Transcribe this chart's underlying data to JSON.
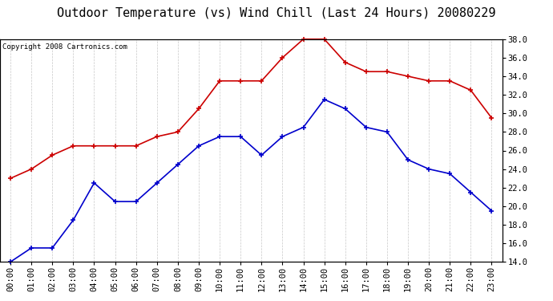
{
  "title": "Outdoor Temperature (vs) Wind Chill (Last 24 Hours) 20080229",
  "copyright": "Copyright 2008 Cartronics.com",
  "hours": [
    "00:00",
    "01:00",
    "02:00",
    "03:00",
    "04:00",
    "05:00",
    "06:00",
    "07:00",
    "08:00",
    "09:00",
    "10:00",
    "11:00",
    "12:00",
    "13:00",
    "14:00",
    "15:00",
    "16:00",
    "17:00",
    "18:00",
    "19:00",
    "20:00",
    "21:00",
    "22:00",
    "23:00"
  ],
  "temp": [
    23.0,
    24.0,
    25.5,
    26.5,
    26.5,
    26.5,
    26.5,
    27.5,
    28.0,
    30.5,
    33.5,
    33.5,
    33.5,
    36.0,
    38.0,
    38.0,
    35.5,
    34.5,
    34.5,
    34.0,
    33.5,
    33.5,
    32.5,
    29.5
  ],
  "windchill": [
    14.0,
    15.5,
    15.5,
    18.5,
    22.5,
    20.5,
    20.5,
    22.5,
    24.5,
    26.5,
    27.5,
    27.5,
    25.5,
    27.5,
    28.5,
    31.5,
    30.5,
    28.5,
    28.0,
    25.0,
    24.0,
    23.5,
    21.5,
    19.5
  ],
  "temp_color": "#cc0000",
  "windchill_color": "#0000cc",
  "ylim": [
    14.0,
    38.0
  ],
  "yticks": [
    14.0,
    16.0,
    18.0,
    20.0,
    22.0,
    24.0,
    26.0,
    28.0,
    30.0,
    32.0,
    34.0,
    36.0,
    38.0
  ],
  "bg_color": "#ffffff",
  "grid_color": "#c8c8c8",
  "title_fontsize": 11,
  "copyright_fontsize": 6.5,
  "tick_fontsize": 7.5,
  "marker": "+",
  "marker_size": 5,
  "linewidth": 1.2
}
